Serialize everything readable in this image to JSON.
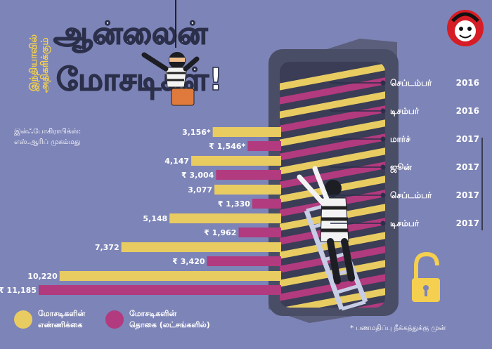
{
  "header": {
    "title_line1": "ஆன்லைன்",
    "title_line2": "மோசடிகள்!",
    "side_line1": "இந்தியாவில்",
    "side_line2": "அதிகரிக்கும்"
  },
  "credit": {
    "line1": "இன்ஃபோகிராபிக்ஸ்:",
    "line2": "எஸ்.ஆரிப் முகம்மது"
  },
  "legend": [
    {
      "label_line1": "மோசடிகளின்",
      "label_line2": "எண்ணிக்கை",
      "color": "#e8cc62"
    },
    {
      "label_line1": "மோசடிகளின்",
      "label_line2": "தொகை (லட்சங்களில்)",
      "color": "#b23a7e"
    }
  ],
  "footnote": "* பணமதிப்பு நீக்கத்துக்கு முன்",
  "colors": {
    "background": "#7d84b7",
    "count_bar": "#e8cc62",
    "amount_bar": "#b23a7e",
    "phone": "#4a4d66"
  },
  "icons": [
    "logo-icon",
    "thief-icon",
    "phone-icon",
    "ladder-icon",
    "padlock-icon"
  ],
  "chart_data": {
    "type": "bar",
    "orientation": "horizontal",
    "categories": [
      {
        "month": "செப்டம்பர்",
        "year": "2016"
      },
      {
        "month": "டிசம்பர்",
        "year": "2016"
      },
      {
        "month": "மார்ச்",
        "year": "2017"
      },
      {
        "month": "ஜூன்",
        "year": "2017"
      },
      {
        "month": "செப்டம்பர்",
        "year": "2017"
      },
      {
        "month": "டிசம்பர்",
        "year": "2017"
      }
    ],
    "series": [
      {
        "name": "மோசடிகளின் எண்ணிக்கை",
        "values": [
          3156,
          4147,
          3077,
          5148,
          7372,
          10220
        ],
        "labels": [
          "3,156*",
          "4,147",
          "3,077",
          "5,148",
          "7,372",
          "10,220"
        ]
      },
      {
        "name": "மோசடிகளின் தொகை (லட்சங்களில்)",
        "values": [
          1546,
          3004,
          1330,
          1962,
          3420,
          11185
        ],
        "labels": [
          "₹ 1,546*",
          "₹ 3,004",
          "₹ 1,330",
          "₹ 1,962",
          "₹ 3,420",
          "₹ 11,185"
        ]
      }
    ]
  }
}
